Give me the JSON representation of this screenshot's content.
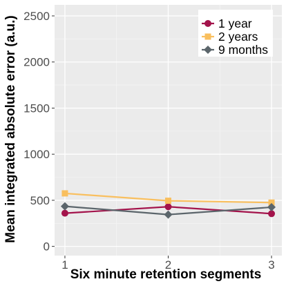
{
  "chart_data": {
    "type": "line",
    "title": "",
    "xlabel": "Six minute retention segments",
    "ylabel": "Mean integrated absolute error (a.u.)",
    "x": [
      1,
      2,
      3
    ],
    "x_tick_labels": [
      "1",
      "2",
      "3"
    ],
    "ylim": [
      -100,
      2620
    ],
    "y_ticks": [
      0,
      500,
      1000,
      1500,
      2000,
      2500
    ],
    "y_tick_labels": [
      "0",
      "500",
      "1000",
      "1500",
      "2000",
      "2500"
    ],
    "grid": true,
    "legend_position": "top-right",
    "series": [
      {
        "name": "1 year",
        "values": [
          360,
          430,
          355
        ],
        "color": "#a3134b",
        "marker": "circle"
      },
      {
        "name": "2 years",
        "values": [
          575,
          495,
          475
        ],
        "color": "#f9bf5e",
        "marker": "square"
      },
      {
        "name": "9 months",
        "values": [
          435,
          345,
          425
        ],
        "color": "#5b656b",
        "marker": "diamond"
      }
    ]
  }
}
